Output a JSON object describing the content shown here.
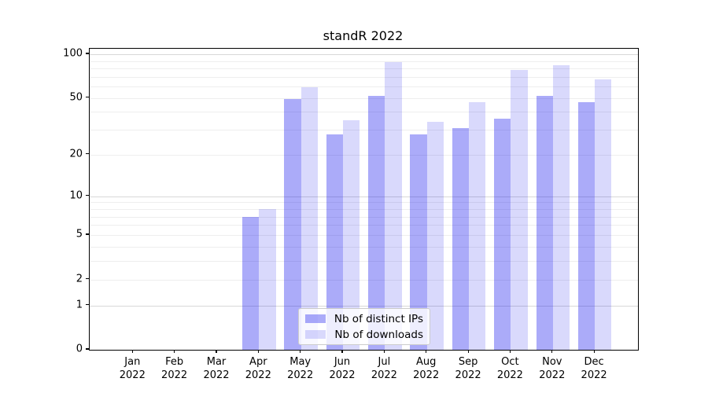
{
  "title": "standR 2022",
  "colors": {
    "bar_ips": "rgba(0,0,238,0.33)",
    "bar_downloads": "rgba(0,0,238,0.15)",
    "grid_minor": "#eeeeee",
    "grid_major": "#d8d8d8",
    "axis": "#000000"
  },
  "legend": {
    "items": [
      {
        "label": "Nb of distinct IPs",
        "series": "ips"
      },
      {
        "label": "Nb of downloads",
        "series": "downloads"
      }
    ]
  },
  "chart_data": {
    "type": "bar",
    "title": "standR 2022",
    "categories": [
      "Jan",
      "Feb",
      "Mar",
      "Apr",
      "May",
      "Jun",
      "Jul",
      "Aug",
      "Sep",
      "Oct",
      "Nov",
      "Dec"
    ],
    "x_year": "2022",
    "series": [
      {
        "name": "Nb of distinct IPs",
        "values": [
          0,
          0,
          0,
          7,
          49,
          28,
          52,
          28,
          31,
          36,
          52,
          47
        ]
      },
      {
        "name": "Nb of downloads",
        "values": [
          0,
          0,
          0,
          8,
          59,
          35,
          88,
          34,
          47,
          78,
          84,
          67
        ]
      }
    ],
    "yscale": "log1p",
    "ylim": [
      0,
      109
    ],
    "ytick_labels": [
      0,
      1,
      2,
      5,
      10,
      20,
      50,
      100
    ],
    "grid_values": [
      1,
      2,
      3,
      4,
      5,
      6,
      7,
      8,
      9,
      10,
      20,
      30,
      40,
      50,
      60,
      70,
      80,
      90,
      100
    ],
    "grid_major_values": [
      1,
      10,
      100
    ],
    "legend_position": "lower center",
    "xlabel": "",
    "ylabel": ""
  }
}
